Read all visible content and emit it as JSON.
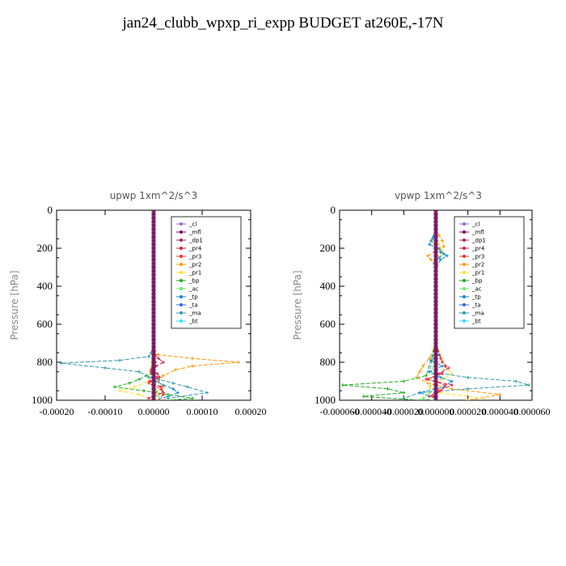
{
  "title": "jan24_clubb_wpxp_ri_expp  BUDGET at260E,-17N",
  "legend_names": [
    "_cl",
    "_mfl",
    "_dp1",
    "_pr4",
    "_pr3",
    "_pr2",
    "_pr1",
    "_bp",
    "_ac",
    "_tp",
    "_ta",
    "_ma",
    "_bt"
  ],
  "series_colors": [
    "#9966cc",
    "#800060",
    "#aa2266",
    "#cc2244",
    "#ee3333",
    "#ff9900",
    "#ffdd33",
    "#22aa22",
    "#66ee66",
    "#1188cc",
    "#3366ee",
    "#3399aa",
    "#33ddee"
  ],
  "chart_data": [
    {
      "type": "line",
      "title": "upwp   1xm^2/s^3",
      "ylabel": "Pressure [hPa]",
      "ylim": [
        1000,
        0
      ],
      "xlim": [
        -0.0002,
        0.0002
      ],
      "yticks": [
        "0",
        "200",
        "400",
        "600",
        "800",
        "1000"
      ],
      "xticks": [
        "-0.00020",
        "-0.00010",
        "0.00000",
        "0.00010",
        "0.00020"
      ],
      "legend": "top-right",
      "series": [
        {
          "name": "_pr2",
          "y": [
            700,
            740,
            760,
            780,
            800,
            820,
            840,
            870,
            900,
            930,
            960,
            990
          ],
          "x": [
            0,
            2e-06,
            1e-05,
            8e-05,
            0.000175,
            8e-05,
            4.5e-05,
            2e-05,
            1e-05,
            2e-05,
            5e-06,
            0
          ]
        },
        {
          "name": "_ma",
          "y": [
            700,
            750,
            770,
            790,
            805,
            830,
            850,
            870,
            890,
            910,
            930,
            960,
            990
          ],
          "x": [
            0,
            -5e-06,
            -1e-05,
            -7e-05,
            -0.00019,
            -0.0001,
            -3e-05,
            -1.5e-05,
            1e-05,
            4e-05,
            7e-05,
            0.00011,
            3e-05
          ]
        },
        {
          "name": "_tp",
          "y": [
            700,
            780,
            850,
            880,
            900,
            920,
            940,
            960,
            980,
            1000
          ],
          "x": [
            0,
            2e-06,
            -5e-06,
            -1e-05,
            5e-06,
            2e-05,
            4e-05,
            5e-05,
            3e-05,
            0
          ]
        },
        {
          "name": "_bp",
          "y": [
            700,
            860,
            890,
            910,
            930,
            950,
            970,
            990,
            1000
          ],
          "x": [
            0,
            -5e-06,
            -3e-05,
            -5e-05,
            -8e-05,
            -2e-05,
            3e-05,
            8e-05,
            3e-05
          ]
        },
        {
          "name": "_pr1",
          "y": [
            700,
            900,
            930,
            950,
            970,
            990,
            1000
          ],
          "x": [
            0,
            -1e-05,
            -4e-05,
            -7e-05,
            -3e-05,
            -1e-05,
            0
          ]
        },
        {
          "name": "_pr4",
          "y": [
            700,
            760,
            780,
            800,
            820,
            840,
            860,
            880,
            900,
            930,
            960,
            990
          ],
          "x": [
            0,
            3e-06,
            1e-05,
            2e-05,
            5e-06,
            -5e-06,
            8e-06,
            1.2e-05,
            -8e-06,
            1.5e-05,
            2e-05,
            -1e-05
          ]
        },
        {
          "name": "_pr3",
          "y": [
            700,
            800,
            850,
            880,
            910,
            940,
            970,
            1000
          ],
          "x": [
            0,
            4e-06,
            -6e-06,
            8e-06,
            -1e-05,
            1.5e-05,
            2e-05,
            1e-05
          ]
        },
        {
          "name": "_ac",
          "y": [
            700,
            950,
            980,
            1000
          ],
          "x": [
            0,
            5e-06,
            1e-05,
            5e-06
          ]
        },
        {
          "name": "_cl",
          "y": [
            0,
            1000
          ],
          "x": [
            0,
            0
          ]
        },
        {
          "name": "_mfl",
          "y": [
            0,
            1000
          ],
          "x": [
            0,
            0
          ]
        }
      ]
    },
    {
      "type": "line",
      "title": "vpwp   1xm^2/s^3",
      "ylabel": "Pressure [hPa]",
      "ylim": [
        1000,
        0
      ],
      "xlim": [
        -6e-05,
        6e-05
      ],
      "yticks": [
        "0",
        "200",
        "400",
        "600",
        "800",
        "1000"
      ],
      "xticks": [
        "-0.000060",
        "-0.000040",
        "-0.000020",
        "0.000000",
        "0.000020",
        "0.000040",
        "0.000060"
      ],
      "legend": "top-right",
      "series": [
        {
          "name": "_pr2",
          "y": [
            100,
            130,
            160,
            190,
            215,
            240,
            260,
            290,
            320
          ],
          "x": [
            0,
            2e-06,
            4e-06,
            5e-06,
            0,
            -5e-06,
            -3e-06,
            1e-06,
            0
          ]
        },
        {
          "name": "_pr1",
          "y": [
            100,
            180,
            210,
            240,
            270,
            300
          ],
          "x": [
            0,
            2e-06,
            4e-06,
            3e-06,
            0,
            0
          ]
        },
        {
          "name": "_tp",
          "y": [
            100,
            150,
            180,
            200,
            220,
            240,
            260,
            300
          ],
          "x": [
            0,
            -2e-06,
            -4e-06,
            1e-06,
            3e-06,
            7e-06,
            3e-06,
            0
          ]
        },
        {
          "name": "_ma",
          "y": [
            100,
            160,
            200,
            230,
            250,
            280,
            300
          ],
          "x": [
            0,
            -3e-06,
            2e-06,
            5e-06,
            2e-06,
            -1e-06,
            0
          ]
        },
        {
          "name": "_pr2",
          "y": [
            700,
            780,
            820,
            850,
            880,
            910,
            940,
            970,
            1000
          ],
          "x": [
            0,
            -4e-06,
            -8e-06,
            -1e-05,
            -1.2e-05,
            -5e-06,
            1e-05,
            4e-05,
            2e-05
          ]
        },
        {
          "name": "_pr1",
          "y": [
            700,
            820,
            860,
            890,
            930,
            960,
            990
          ],
          "x": [
            0,
            6e-06,
            1e-05,
            4e-06,
            -4e-06,
            2e-06,
            3e-05
          ]
        },
        {
          "name": "_ma",
          "y": [
            700,
            850,
            880,
            900,
            920,
            940,
            960,
            990
          ],
          "x": [
            0,
            -4e-06,
            2e-05,
            5e-05,
            5.8e-05,
            2e-05,
            -1e-05,
            -2e-05
          ]
        },
        {
          "name": "_bp",
          "y": [
            700,
            870,
            900,
            920,
            940,
            960,
            980,
            1000
          ],
          "x": [
            0,
            -6e-06,
            -2e-05,
            -5.8e-05,
            -3e-05,
            -2e-05,
            -4.5e-05,
            -1e-05
          ]
        },
        {
          "name": "_tp",
          "y": [
            700,
            760,
            790,
            820,
            850,
            880,
            900,
            930,
            960,
            990
          ],
          "x": [
            0,
            2e-06,
            -3e-06,
            4e-06,
            -4e-06,
            3e-06,
            1e-05,
            5e-06,
            -1e-05,
            0
          ]
        },
        {
          "name": "_pr4",
          "y": [
            700,
            780,
            820,
            860,
            890,
            920,
            950,
            980
          ],
          "x": [
            0,
            3e-06,
            6e-06,
            4e-06,
            -6e-06,
            1e-05,
            2e-06,
            -4e-06
          ]
        },
        {
          "name": "_pr3",
          "y": [
            700,
            800,
            830,
            860,
            890,
            920,
            950,
            980
          ],
          "x": [
            0,
            4e-06,
            8e-06,
            2e-06,
            -5e-06,
            6e-06,
            3e-06,
            -2e-06
          ]
        },
        {
          "name": "_ac",
          "y": [
            700,
            960,
            990,
            1000
          ],
          "x": [
            0,
            -4e-06,
            -8e-06,
            -2e-06
          ]
        },
        {
          "name": "_cl",
          "y": [
            0,
            1000
          ],
          "x": [
            0,
            0
          ]
        },
        {
          "name": "_mfl",
          "y": [
            0,
            1000
          ],
          "x": [
            0,
            0
          ]
        }
      ]
    }
  ]
}
